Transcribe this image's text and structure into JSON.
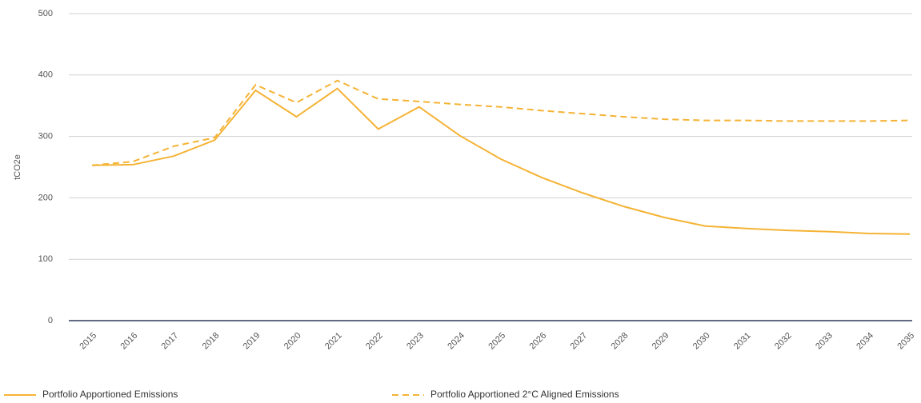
{
  "chart_data": {
    "type": "line",
    "y_label": "tCO2e",
    "categories": [
      "2015",
      "2016",
      "2017",
      "2018",
      "2019",
      "2020",
      "2021",
      "2022",
      "2023",
      "2024",
      "2025",
      "2026",
      "2027",
      "2028",
      "2029",
      "2030",
      "2031",
      "2032",
      "2033",
      "2034",
      "2035"
    ],
    "series": [
      {
        "name": "Portfolio Apportioned Emissions",
        "color": "#f5b335",
        "dashed": false,
        "values": [
          253,
          254,
          268,
          294,
          375,
          332,
          378,
          312,
          348,
          301,
          263,
          233,
          208,
          186,
          168,
          154,
          150,
          147,
          145,
          142,
          141
        ]
      },
      {
        "name": "Portfolio Apportioned 2°C Aligned Emissions",
        "color": "#f5b335",
        "dashed": true,
        "values": [
          253,
          259,
          284,
          298,
          384,
          355,
          391,
          361,
          357,
          352,
          348,
          342,
          337,
          332,
          328,
          326,
          326,
          325,
          325,
          325,
          326
        ]
      }
    ],
    "ylim": [
      0,
      500
    ],
    "yticks": [
      0,
      100,
      200,
      300,
      400,
      500
    ],
    "grid": true
  }
}
